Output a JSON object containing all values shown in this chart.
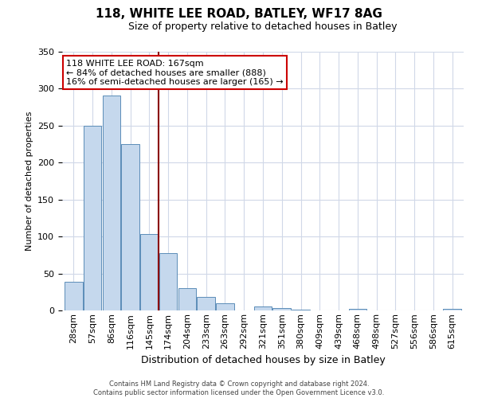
{
  "title": "118, WHITE LEE ROAD, BATLEY, WF17 8AG",
  "subtitle": "Size of property relative to detached houses in Batley",
  "xlabel": "Distribution of detached houses by size in Batley",
  "ylabel": "Number of detached properties",
  "bar_labels": [
    "28sqm",
    "57sqm",
    "86sqm",
    "116sqm",
    "145sqm",
    "174sqm",
    "204sqm",
    "233sqm",
    "263sqm",
    "292sqm",
    "321sqm",
    "351sqm",
    "380sqm",
    "409sqm",
    "439sqm",
    "468sqm",
    "498sqm",
    "527sqm",
    "556sqm",
    "586sqm",
    "615sqm"
  ],
  "bar_values": [
    39,
    250,
    291,
    225,
    103,
    78,
    30,
    18,
    10,
    0,
    5,
    3,
    1,
    0,
    0,
    2,
    0,
    0,
    0,
    0,
    2
  ],
  "bar_color": "#c5d8ed",
  "bar_edge_color": "#5b8db8",
  "vline_x_idx": 5,
  "vline_color": "#8b0000",
  "ylim": [
    0,
    350
  ],
  "yticks": [
    0,
    50,
    100,
    150,
    200,
    250,
    300,
    350
  ],
  "annotation_lines": [
    "118 WHITE LEE ROAD: 167sqm",
    "← 84% of detached houses are smaller (888)",
    "16% of semi-detached houses are larger (165) →"
  ],
  "annotation_box_color": "#ffffff",
  "annotation_box_edge_color": "#cc0000",
  "footer_line1": "Contains HM Land Registry data © Crown copyright and database right 2024.",
  "footer_line2": "Contains public sector information licensed under the Open Government Licence v3.0.",
  "background_color": "#ffffff",
  "grid_color": "#d0d8e8",
  "title_fontsize": 11,
  "subtitle_fontsize": 9,
  "ylabel_fontsize": 8,
  "xlabel_fontsize": 9,
  "tick_fontsize": 8,
  "annotation_fontsize": 8,
  "footer_fontsize": 6
}
